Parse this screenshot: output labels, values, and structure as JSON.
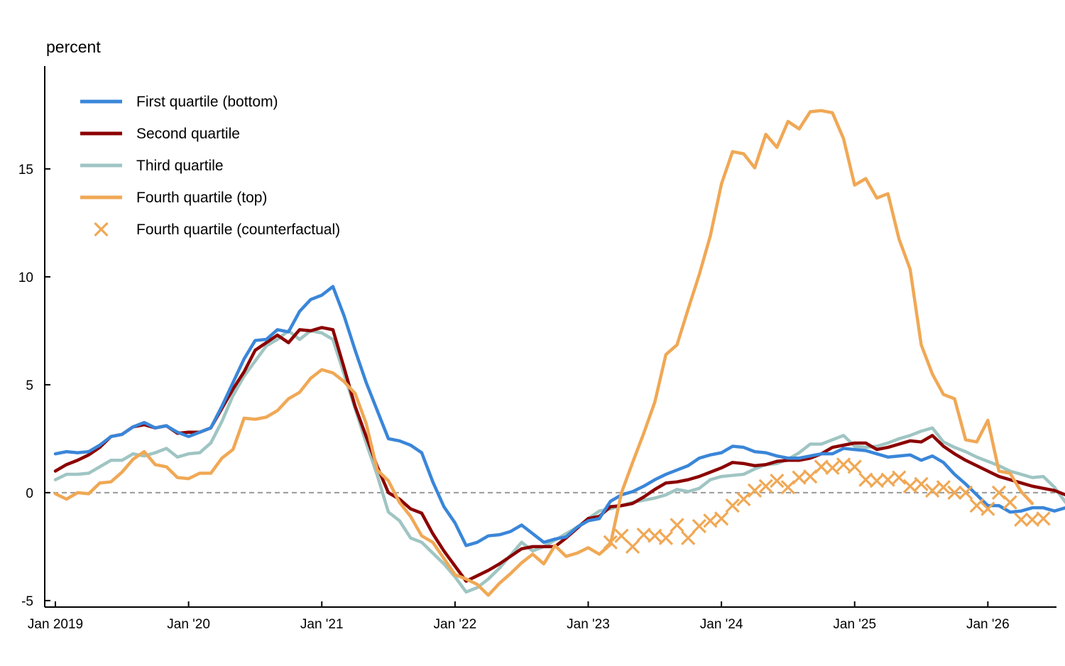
{
  "chart_data": {
    "type": "line",
    "ylabel": "percent",
    "ylim": [
      -5.3,
      19.7
    ],
    "yticks": [
      -5,
      0,
      5,
      10,
      15
    ],
    "ytick_labels": [
      "-5",
      "0",
      "5",
      "10",
      "15"
    ],
    "xlim": [
      "2019-01",
      "2026-06"
    ],
    "xticks": [
      "2019-01",
      "2020-01",
      "2021-01",
      "2022-01",
      "2023-01",
      "2024-01",
      "2025-01",
      "2026-01"
    ],
    "xtick_labels": [
      "Jan 2019",
      "Jan '20",
      "Jan '21",
      "Jan '22",
      "Jan '23",
      "Jan '24",
      "Jan '25",
      "Jan '26"
    ],
    "zero_line": true,
    "grid": false,
    "legend_position": "top-left",
    "series": [
      {
        "name": "First quartile (bottom)",
        "color": "#3a86d9",
        "style": "line",
        "start": "2019-01",
        "values": [
          1.8,
          1.9,
          1.85,
          1.9,
          2.2,
          2.6,
          2.7,
          3.05,
          3.25,
          3.0,
          3.1,
          2.8,
          2.6,
          2.8,
          3.0,
          4.0,
          5.1,
          6.2,
          7.05,
          7.1,
          7.55,
          7.45,
          8.4,
          8.95,
          9.15,
          9.55,
          8.2,
          6.6,
          5.1,
          3.8,
          2.5,
          2.4,
          2.2,
          1.85,
          0.5,
          -0.65,
          -1.4,
          -2.45,
          -2.3,
          -2.0,
          -1.95,
          -1.8,
          -1.5,
          -1.9,
          -2.3,
          -2.15,
          -2.05,
          -1.6,
          -1.3,
          -1.2,
          -0.4,
          -0.1,
          0.05,
          0.3,
          0.6,
          0.85,
          1.05,
          1.25,
          1.6,
          1.75,
          1.85,
          2.15,
          2.1,
          1.9,
          1.85,
          1.7,
          1.6,
          1.6,
          1.7,
          1.8,
          1.8,
          2.05,
          2.0,
          1.95,
          1.8,
          1.65,
          1.7,
          1.75,
          1.5,
          1.7,
          1.4,
          0.85,
          0.4,
          -0.1,
          -0.6,
          -0.6,
          -0.9,
          -0.85,
          -0.7,
          -0.7,
          -0.85,
          -0.7,
          -0.85,
          -0.95,
          -0.7
        ]
      },
      {
        "name": "Second quartile",
        "color": "#8b0000",
        "style": "line",
        "start": "2019-01",
        "values": [
          1.0,
          1.3,
          1.5,
          1.75,
          2.1,
          2.6,
          2.7,
          3.05,
          3.15,
          3.0,
          3.1,
          2.75,
          2.8,
          2.8,
          3.0,
          3.9,
          4.8,
          5.6,
          6.6,
          6.95,
          7.3,
          6.95,
          7.55,
          7.5,
          7.65,
          7.55,
          5.8,
          4.0,
          2.6,
          1.2,
          0.0,
          -0.3,
          -0.75,
          -0.95,
          -1.9,
          -2.7,
          -3.4,
          -4.1,
          -3.85,
          -3.6,
          -3.3,
          -2.95,
          -2.6,
          -2.5,
          -2.5,
          -2.5,
          -2.1,
          -1.65,
          -1.2,
          -1.1,
          -0.65,
          -0.6,
          -0.5,
          -0.2,
          0.15,
          0.45,
          0.5,
          0.6,
          0.75,
          0.95,
          1.15,
          1.4,
          1.35,
          1.25,
          1.3,
          1.45,
          1.5,
          1.5,
          1.6,
          1.8,
          2.1,
          2.2,
          2.3,
          2.3,
          2.0,
          2.1,
          2.25,
          2.4,
          2.35,
          2.65,
          2.15,
          1.8,
          1.5,
          1.25,
          1.0,
          0.75,
          0.6,
          0.45,
          0.3,
          0.2,
          0.1,
          -0.1,
          -0.35,
          -0.55,
          -0.4
        ]
      },
      {
        "name": "Third quartile",
        "color": "#9fc5c3",
        "style": "line",
        "start": "2019-01",
        "values": [
          0.6,
          0.85,
          0.85,
          0.9,
          1.2,
          1.5,
          1.5,
          1.8,
          1.7,
          1.85,
          2.05,
          1.65,
          1.8,
          1.85,
          2.3,
          3.3,
          4.5,
          5.4,
          6.1,
          6.8,
          7.1,
          7.5,
          7.1,
          7.5,
          7.4,
          7.1,
          5.5,
          3.9,
          2.3,
          0.8,
          -0.9,
          -1.3,
          -2.1,
          -2.3,
          -2.8,
          -3.3,
          -3.9,
          -4.6,
          -4.4,
          -4.0,
          -3.5,
          -2.9,
          -2.3,
          -2.7,
          -2.5,
          -2.2,
          -1.9,
          -1.6,
          -1.2,
          -0.85,
          -0.75,
          -0.6,
          -0.45,
          -0.35,
          -0.25,
          -0.1,
          0.15,
          0.05,
          0.2,
          0.6,
          0.75,
          0.8,
          0.85,
          1.1,
          1.3,
          1.35,
          1.55,
          1.85,
          2.25,
          2.25,
          2.45,
          2.65,
          2.15,
          2.1,
          2.15,
          2.3,
          2.5,
          2.65,
          2.85,
          3.0,
          2.35,
          2.1,
          1.9,
          1.65,
          1.45,
          1.25,
          1.0,
          0.85,
          0.7,
          0.75,
          0.25,
          -0.45,
          -0.75,
          -0.85,
          -0.65
        ]
      },
      {
        "name": "Fourth quartile (top)",
        "color": "#f0a855",
        "style": "line",
        "start": "2019-01",
        "values": [
          -0.05,
          -0.3,
          0.0,
          -0.05,
          0.45,
          0.5,
          0.95,
          1.55,
          1.9,
          1.3,
          1.2,
          0.7,
          0.65,
          0.9,
          0.9,
          1.6,
          2.0,
          3.45,
          3.4,
          3.5,
          3.8,
          4.35,
          4.65,
          5.3,
          5.7,
          5.55,
          5.15,
          4.6,
          3.2,
          1.05,
          0.55,
          -0.45,
          -1.1,
          -2.0,
          -2.3,
          -3.05,
          -3.8,
          -4.0,
          -4.25,
          -4.75,
          -4.2,
          -3.75,
          -3.25,
          -2.85,
          -3.3,
          -2.45,
          -2.95,
          -2.8,
          -2.55,
          -2.85,
          -2.4,
          0.0,
          1.4,
          2.75,
          4.2,
          6.4,
          6.85,
          8.5,
          10.1,
          11.9,
          14.3,
          15.8,
          15.7,
          15.05,
          16.6,
          16.0,
          17.2,
          16.85,
          17.65,
          17.7,
          17.6,
          16.4,
          14.25,
          14.55,
          13.65,
          13.85,
          11.75,
          10.35,
          6.85,
          5.5,
          4.55,
          4.35,
          2.45,
          2.35,
          3.35,
          1.0,
          0.9,
          0.05,
          -0.5
        ]
      },
      {
        "name": "Fourth quartile (counterfactual)",
        "color": "#f0a855",
        "style": "marker-x",
        "start": "2023-03",
        "values": [
          -2.3,
          -2.0,
          -2.5,
          -1.95,
          -2.0,
          -2.1,
          -1.5,
          -2.1,
          -1.55,
          -1.3,
          -1.2,
          -0.6,
          -0.3,
          0.1,
          0.3,
          0.55,
          0.25,
          0.7,
          0.75,
          1.2,
          1.15,
          1.3,
          1.2,
          0.6,
          0.55,
          0.6,
          0.7,
          0.3,
          0.4,
          0.1,
          0.25,
          0.0,
          0.0,
          -0.6,
          -0.75,
          0.0,
          -0.45,
          -1.25,
          -1.25,
          -1.2
        ]
      }
    ]
  }
}
